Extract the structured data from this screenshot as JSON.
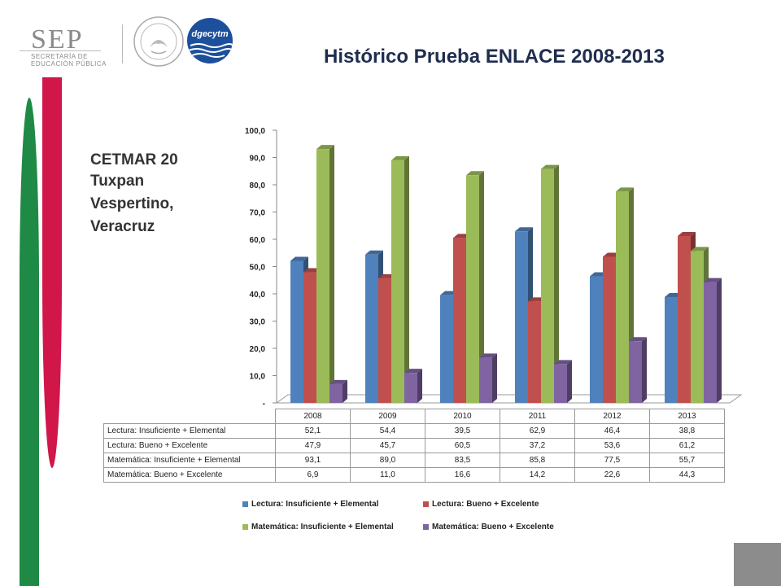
{
  "header": {
    "logo_text": "SEP",
    "logo_sub1": "SECRETARÍA DE",
    "logo_sub2": "EDUCACIÓN PÚBLICA",
    "brand_text": "dgecytm",
    "title": "Histórico Prueba ENLACE 2008-2013"
  },
  "school": {
    "line1": "CETMAR 20",
    "line2": "Tuxpan",
    "line3": "Vespertino,",
    "line4": "Veracruz"
  },
  "colors": {
    "green_stripe": "#1e8a45",
    "red_stripe": "#d1164a",
    "gray_box": "#8c8c8c"
  },
  "chart_data": {
    "type": "bar",
    "categories": [
      "2008",
      "2009",
      "2010",
      "2011",
      "2012",
      "2013"
    ],
    "series": [
      {
        "name": "Lectura: Insuficiente + Elemental",
        "color": "#4f81bd",
        "values": [
          52.1,
          54.4,
          39.5,
          62.9,
          46.4,
          38.8
        ]
      },
      {
        "name": "Lectura: Bueno + Excelente",
        "color": "#c0504d",
        "values": [
          47.9,
          45.7,
          60.5,
          37.2,
          53.6,
          61.2
        ]
      },
      {
        "name": "Matemática: Insuficiente + Elemental",
        "color": "#9bbb59",
        "values": [
          93.1,
          89.0,
          83.5,
          85.8,
          77.5,
          55.7
        ]
      },
      {
        "name": "Matemática: Bueno + Excelente",
        "color": "#8064a2",
        "values": [
          6.9,
          11.0,
          16.6,
          14.2,
          22.6,
          44.3
        ]
      }
    ],
    "yticks": [
      "-",
      "10,0",
      "20,0",
      "30,0",
      "40,0",
      "50,0",
      "60,0",
      "70,0",
      "80,0",
      "90,0",
      "100,0"
    ],
    "ylim": [
      0,
      100
    ],
    "table_values": [
      [
        "52,1",
        "54,4",
        "39,5",
        "62,9",
        "46,4",
        "38,8"
      ],
      [
        "47,9",
        "45,7",
        "60,5",
        "37,2",
        "53,6",
        "61,2"
      ],
      [
        "93,1",
        "89,0",
        "83,5",
        "85,8",
        "77,5",
        "55,7"
      ],
      [
        "6,9",
        "11,0",
        "16,6",
        "14,2",
        "22,6",
        "44,3"
      ]
    ],
    "legend_position": "bottom",
    "grid": false
  }
}
